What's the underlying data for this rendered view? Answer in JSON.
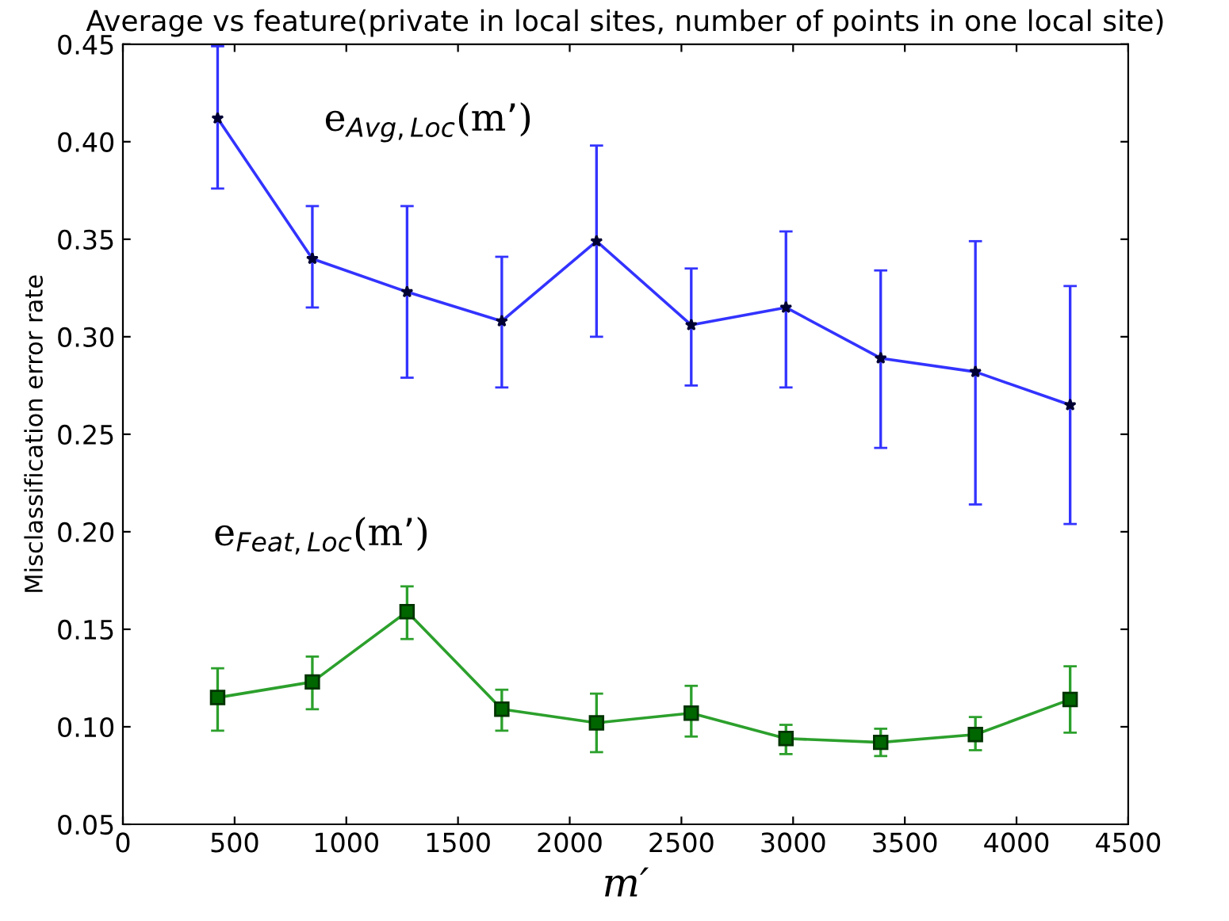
{
  "chart_data": {
    "type": "line",
    "title": "Average vs feature(private in local sites, number of points in one local site)",
    "xlabel": "m′",
    "ylabel": "Misclassification error rate",
    "x": [
      424,
      848,
      1272,
      1696,
      2120,
      2544,
      2968,
      3392,
      3816,
      4240
    ],
    "series": [
      {
        "color": "#3333ff",
        "marker": "star",
        "values": [
          0.412,
          0.34,
          0.323,
          0.308,
          0.349,
          0.306,
          0.315,
          0.289,
          0.282,
          0.265
        ],
        "errors": [
          [
            0.376,
            0.449
          ],
          [
            0.315,
            0.367
          ],
          [
            0.279,
            0.367
          ],
          [
            0.274,
            0.341
          ],
          [
            0.3,
            0.398
          ],
          [
            0.275,
            0.335
          ],
          [
            0.274,
            0.354
          ],
          [
            0.243,
            0.334
          ],
          [
            0.214,
            0.349
          ],
          [
            0.204,
            0.326
          ]
        ]
      },
      {
        "color": "#2ca02c",
        "marker": "square",
        "values": [
          0.115,
          0.123,
          0.159,
          0.109,
          0.102,
          0.107,
          0.094,
          0.092,
          0.096,
          0.114
        ],
        "errors": [
          [
            0.098,
            0.13
          ],
          [
            0.109,
            0.136
          ],
          [
            0.145,
            0.172
          ],
          [
            0.098,
            0.119
          ],
          [
            0.087,
            0.117
          ],
          [
            0.095,
            0.121
          ],
          [
            0.086,
            0.101
          ],
          [
            0.085,
            0.099
          ],
          [
            0.088,
            0.105
          ],
          [
            0.097,
            0.131
          ]
        ]
      }
    ],
    "annotations": [
      "e$_{Avg,Loc}$(m’)",
      "e$_{Feat,Loc}$(m’)"
    ],
    "xlim": [
      0,
      4500
    ],
    "ylim": [
      0.05,
      0.45
    ],
    "xticks": [
      0,
      500,
      1000,
      1500,
      2000,
      2500,
      3000,
      3500,
      4000,
      4500
    ],
    "yticks": [
      0.05,
      {
        "value": 0.1,
        "label": "0.10"
      },
      0.15,
      {
        "value": 0.2,
        "label": "0.20"
      },
      0.25,
      {
        "value": 0.3,
        "label": "0.30"
      },
      0.35,
      {
        "value": 0.4,
        "label": "0.40"
      },
      0.45
    ],
    "grid": false,
    "legend": false
  }
}
